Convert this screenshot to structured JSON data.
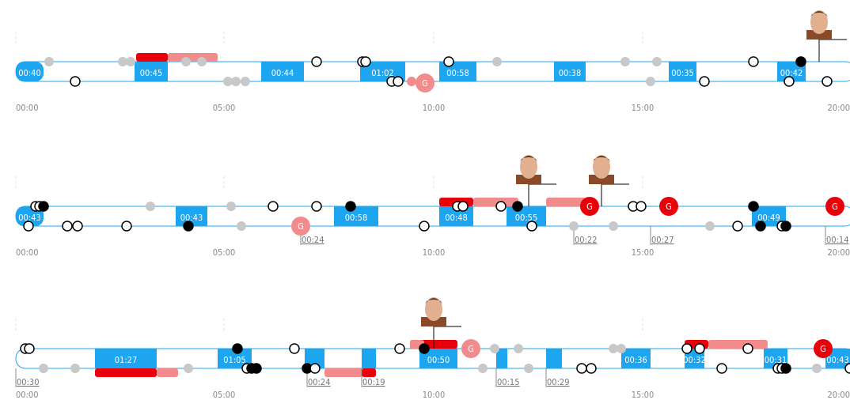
{
  "rows": [
    {
      "axis": [
        "00:00",
        "05:00",
        "10:00",
        "15:00",
        "20:00"
      ],
      "blocks": [
        "00:40",
        "00:45",
        "00:44",
        "01:02",
        "00:58",
        "00:38",
        "00:35",
        "00:42"
      ],
      "durations": [],
      "goals": [
        "G"
      ]
    },
    {
      "axis": [
        "00:00",
        "05:00",
        "10:00",
        "15:00",
        "20:00"
      ],
      "blocks": [
        "00:43",
        "00:43",
        "00:58",
        "00:48",
        "00:55",
        "00:49"
      ],
      "durations": [
        "00:24",
        "00:22",
        "00:27",
        "00:14"
      ],
      "goals": [
        "G",
        "G",
        "G",
        "G"
      ]
    },
    {
      "axis": [
        "00:00",
        "05:00",
        "10:00",
        "15:00",
        "20:00"
      ],
      "blocks": [
        "01:27",
        "01:05",
        "00:50",
        "00:36",
        "00:32",
        "00:31",
        "00:43"
      ],
      "durations": [
        "00:30",
        "00:24",
        "00:19",
        "00:15",
        "00:29"
      ],
      "goals": [
        "G",
        "G"
      ]
    }
  ]
}
